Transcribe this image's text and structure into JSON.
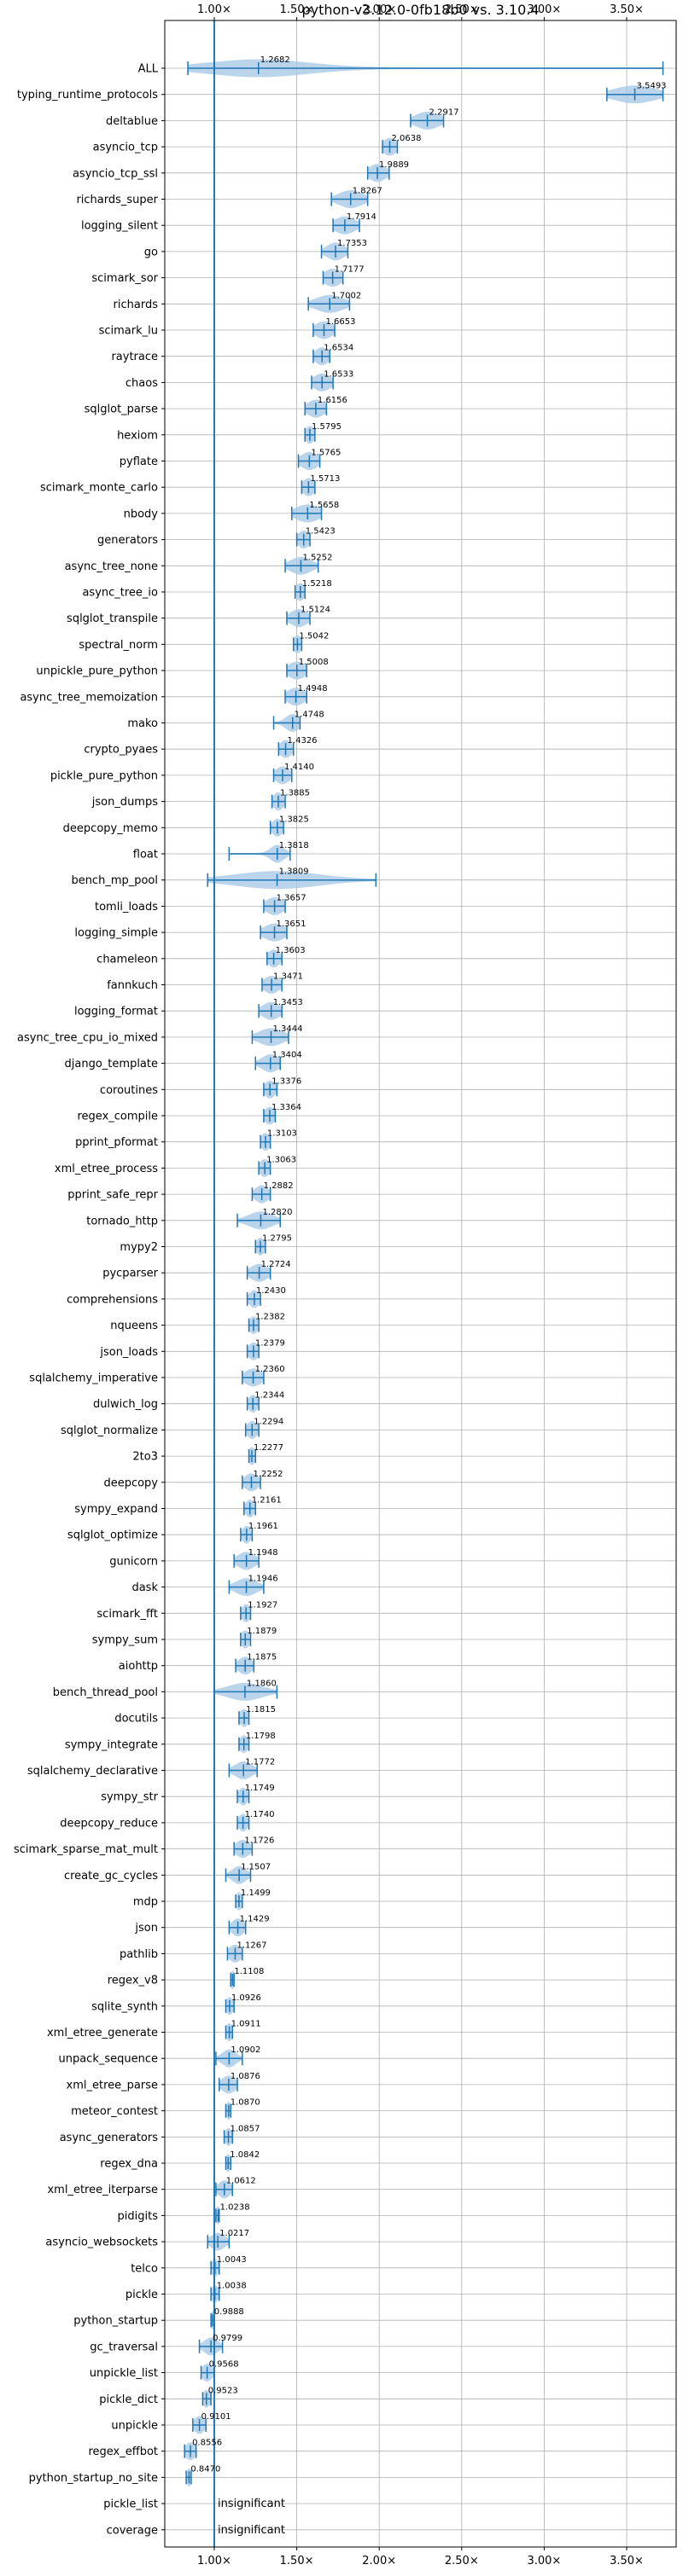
{
  "chart_data": {
    "type": "violin",
    "title": "python-v3.12.0-0fb18b0 vs. 3.10.4",
    "xlim": [
      0.7,
      3.8
    ],
    "x_ticks": [
      1.0,
      1.5,
      2.0,
      2.5,
      3.0,
      3.5
    ],
    "x_tick_labels": [
      "1.00×",
      "1.50×",
      "2.00×",
      "2.50×",
      "3.00×",
      "3.50×"
    ],
    "reference_line": 1.0,
    "grid": true,
    "color": "#1f77b4",
    "fill_color": "#a9c9e6",
    "benchmarks": [
      {
        "name": "ALL",
        "label": "1.2682",
        "median": 1.2682,
        "min": 0.84,
        "max": 3.72,
        "spread": 0.3
      },
      {
        "name": "typing_runtime_protocols",
        "label": "3.5493",
        "median": 3.5493,
        "min": 3.38,
        "max": 3.72,
        "spread": 0.12
      },
      {
        "name": "deltablue",
        "label": "2.2917",
        "median": 2.2917,
        "min": 2.19,
        "max": 2.39,
        "spread": 0.07
      },
      {
        "name": "asyncio_tcp",
        "label": "2.0638",
        "median": 2.0638,
        "min": 2.02,
        "max": 2.11,
        "spread": 0.04
      },
      {
        "name": "asyncio_tcp_ssl",
        "label": "1.9889",
        "median": 1.9889,
        "min": 1.93,
        "max": 2.06,
        "spread": 0.05
      },
      {
        "name": "richards_super",
        "label": "1.8267",
        "median": 1.8267,
        "min": 1.71,
        "max": 1.93,
        "spread": 0.07
      },
      {
        "name": "logging_silent",
        "label": "1.7914",
        "median": 1.7914,
        "min": 1.72,
        "max": 1.88,
        "spread": 0.06
      },
      {
        "name": "go",
        "label": "1.7353",
        "median": 1.7353,
        "min": 1.65,
        "max": 1.81,
        "spread": 0.05
      },
      {
        "name": "scimark_sor",
        "label": "1.7177",
        "median": 1.7177,
        "min": 1.66,
        "max": 1.78,
        "spread": 0.05
      },
      {
        "name": "richards",
        "label": "1.7002",
        "median": 1.7002,
        "min": 1.57,
        "max": 1.82,
        "spread": 0.08
      },
      {
        "name": "scimark_lu",
        "label": "1.6653",
        "median": 1.6653,
        "min": 1.6,
        "max": 1.73,
        "spread": 0.05
      },
      {
        "name": "raytrace",
        "label": "1.6534",
        "median": 1.6534,
        "min": 1.6,
        "max": 1.7,
        "spread": 0.04
      },
      {
        "name": "chaos",
        "label": "1.6533",
        "median": 1.6533,
        "min": 1.59,
        "max": 1.72,
        "spread": 0.05
      },
      {
        "name": "sqlglot_parse",
        "label": "1.6156",
        "median": 1.6156,
        "min": 1.55,
        "max": 1.68,
        "spread": 0.05
      },
      {
        "name": "hexiom",
        "label": "1.5795",
        "median": 1.5795,
        "min": 1.55,
        "max": 1.61,
        "spread": 0.025
      },
      {
        "name": "pyflate",
        "label": "1.5765",
        "median": 1.5765,
        "min": 1.51,
        "max": 1.64,
        "spread": 0.05
      },
      {
        "name": "scimark_monte_carlo",
        "label": "1.5713",
        "median": 1.5713,
        "min": 1.53,
        "max": 1.61,
        "spread": 0.035
      },
      {
        "name": "nbody",
        "label": "1.5658",
        "median": 1.5658,
        "min": 1.47,
        "max": 1.65,
        "spread": 0.07
      },
      {
        "name": "generators",
        "label": "1.5423",
        "median": 1.5423,
        "min": 1.5,
        "max": 1.58,
        "spread": 0.035
      },
      {
        "name": "async_tree_none",
        "label": "1.5252",
        "median": 1.5252,
        "min": 1.43,
        "max": 1.63,
        "spread": 0.06
      },
      {
        "name": "async_tree_io",
        "label": "1.5218",
        "median": 1.5218,
        "min": 1.49,
        "max": 1.55,
        "spread": 0.025
      },
      {
        "name": "sqlglot_transpile",
        "label": "1.5124",
        "median": 1.5124,
        "min": 1.44,
        "max": 1.58,
        "spread": 0.05
      },
      {
        "name": "spectral_norm",
        "label": "1.5042",
        "median": 1.5042,
        "min": 1.48,
        "max": 1.53,
        "spread": 0.025
      },
      {
        "name": "unpickle_pure_python",
        "label": "1.5008",
        "median": 1.5008,
        "min": 1.44,
        "max": 1.56,
        "spread": 0.05
      },
      {
        "name": "async_tree_memoization",
        "label": "1.4948",
        "median": 1.4948,
        "min": 1.43,
        "max": 1.56,
        "spread": 0.05
      },
      {
        "name": "mako",
        "label": "1.4748",
        "median": 1.4748,
        "min": 1.36,
        "max": 1.52,
        "spread": 0.04
      },
      {
        "name": "crypto_pyaes",
        "label": "1.4326",
        "median": 1.4326,
        "min": 1.39,
        "max": 1.48,
        "spread": 0.035
      },
      {
        "name": "pickle_pure_python",
        "label": "1.4140",
        "median": 1.414,
        "min": 1.36,
        "max": 1.47,
        "spread": 0.04
      },
      {
        "name": "json_dumps",
        "label": "1.3885",
        "median": 1.3885,
        "min": 1.35,
        "max": 1.43,
        "spread": 0.03
      },
      {
        "name": "deepcopy_memo",
        "label": "1.3825",
        "median": 1.3825,
        "min": 1.34,
        "max": 1.42,
        "spread": 0.03
      },
      {
        "name": "float",
        "label": "1.3818",
        "median": 1.3818,
        "min": 1.09,
        "max": 1.46,
        "spread": 0.04
      },
      {
        "name": "bench_mp_pool",
        "label": "1.3809",
        "median": 1.3809,
        "min": 0.96,
        "max": 1.98,
        "spread": 0.25
      },
      {
        "name": "tomli_loads",
        "label": "1.3657",
        "median": 1.3657,
        "min": 1.3,
        "max": 1.43,
        "spread": 0.05
      },
      {
        "name": "logging_simple",
        "label": "1.3651",
        "median": 1.3651,
        "min": 1.28,
        "max": 1.44,
        "spread": 0.06
      },
      {
        "name": "chameleon",
        "label": "1.3603",
        "median": 1.3603,
        "min": 1.32,
        "max": 1.41,
        "spread": 0.035
      },
      {
        "name": "fannkuch",
        "label": "1.3471",
        "median": 1.3471,
        "min": 1.29,
        "max": 1.41,
        "spread": 0.045
      },
      {
        "name": "logging_format",
        "label": "1.3453",
        "median": 1.3453,
        "min": 1.27,
        "max": 1.41,
        "spread": 0.05
      },
      {
        "name": "async_tree_cpu_io_mixed",
        "label": "1.3444",
        "median": 1.3444,
        "min": 1.23,
        "max": 1.45,
        "spread": 0.07
      },
      {
        "name": "django_template",
        "label": "1.3404",
        "median": 1.3404,
        "min": 1.25,
        "max": 1.4,
        "spread": 0.05
      },
      {
        "name": "coroutines",
        "label": "1.3376",
        "median": 1.3376,
        "min": 1.3,
        "max": 1.38,
        "spread": 0.03
      },
      {
        "name": "regex_compile",
        "label": "1.3364",
        "median": 1.3364,
        "min": 1.3,
        "max": 1.37,
        "spread": 0.03
      },
      {
        "name": "pprint_pformat",
        "label": "1.3103",
        "median": 1.3103,
        "min": 1.28,
        "max": 1.34,
        "spread": 0.025
      },
      {
        "name": "xml_etree_process",
        "label": "1.3063",
        "median": 1.3063,
        "min": 1.27,
        "max": 1.34,
        "spread": 0.03
      },
      {
        "name": "pprint_safe_repr",
        "label": "1.2882",
        "median": 1.2882,
        "min": 1.23,
        "max": 1.34,
        "spread": 0.04
      },
      {
        "name": "tornado_http",
        "label": "1.2820",
        "median": 1.282,
        "min": 1.14,
        "max": 1.4,
        "spread": 0.07
      },
      {
        "name": "mypy2",
        "label": "1.2795",
        "median": 1.2795,
        "min": 1.25,
        "max": 1.31,
        "spread": 0.025
      },
      {
        "name": "pycparser",
        "label": "1.2724",
        "median": 1.2724,
        "min": 1.2,
        "max": 1.34,
        "spread": 0.05
      },
      {
        "name": "comprehensions",
        "label": "1.2430",
        "median": 1.243,
        "min": 1.2,
        "max": 1.28,
        "spread": 0.03
      },
      {
        "name": "nqueens",
        "label": "1.2382",
        "median": 1.2382,
        "min": 1.21,
        "max": 1.27,
        "spread": 0.025
      },
      {
        "name": "json_loads",
        "label": "1.2379",
        "median": 1.2379,
        "min": 1.2,
        "max": 1.27,
        "spread": 0.03
      },
      {
        "name": "sqlalchemy_imperative",
        "label": "1.2360",
        "median": 1.236,
        "min": 1.17,
        "max": 1.3,
        "spread": 0.05
      },
      {
        "name": "dulwich_log",
        "label": "1.2344",
        "median": 1.2344,
        "min": 1.2,
        "max": 1.27,
        "spread": 0.025
      },
      {
        "name": "sqlglot_normalize",
        "label": "1.2294",
        "median": 1.2294,
        "min": 1.19,
        "max": 1.27,
        "spread": 0.03
      },
      {
        "name": "2to3",
        "label": "1.2277",
        "median": 1.2277,
        "min": 1.21,
        "max": 1.25,
        "spread": 0.02
      },
      {
        "name": "deepcopy",
        "label": "1.2252",
        "median": 1.2252,
        "min": 1.17,
        "max": 1.28,
        "spread": 0.04
      },
      {
        "name": "sympy_expand",
        "label": "1.2161",
        "median": 1.2161,
        "min": 1.18,
        "max": 1.25,
        "spread": 0.025
      },
      {
        "name": "sqlglot_optimize",
        "label": "1.1961",
        "median": 1.1961,
        "min": 1.16,
        "max": 1.23,
        "spread": 0.025
      },
      {
        "name": "gunicorn",
        "label": "1.1948",
        "median": 1.1948,
        "min": 1.12,
        "max": 1.27,
        "spread": 0.05
      },
      {
        "name": "dask",
        "label": "1.1946",
        "median": 1.1946,
        "min": 1.09,
        "max": 1.3,
        "spread": 0.06
      },
      {
        "name": "scimark_fft",
        "label": "1.1927",
        "median": 1.1927,
        "min": 1.16,
        "max": 1.22,
        "spread": 0.025
      },
      {
        "name": "sympy_sum",
        "label": "1.1879",
        "median": 1.1879,
        "min": 1.16,
        "max": 1.22,
        "spread": 0.025
      },
      {
        "name": "aiohttp",
        "label": "1.1875",
        "median": 1.1875,
        "min": 1.13,
        "max": 1.24,
        "spread": 0.04
      },
      {
        "name": "bench_thread_pool",
        "label": "1.1860",
        "median": 1.186,
        "min": 1.0,
        "max": 1.38,
        "spread": 0.1
      },
      {
        "name": "docutils",
        "label": "1.1815",
        "median": 1.1815,
        "min": 1.15,
        "max": 1.21,
        "spread": 0.025
      },
      {
        "name": "sympy_integrate",
        "label": "1.1798",
        "median": 1.1798,
        "min": 1.15,
        "max": 1.21,
        "spread": 0.025
      },
      {
        "name": "sqlalchemy_declarative",
        "label": "1.1772",
        "median": 1.1772,
        "min": 1.09,
        "max": 1.26,
        "spread": 0.05
      },
      {
        "name": "sympy_str",
        "label": "1.1749",
        "median": 1.1749,
        "min": 1.14,
        "max": 1.21,
        "spread": 0.025
      },
      {
        "name": "deepcopy_reduce",
        "label": "1.1740",
        "median": 1.174,
        "min": 1.14,
        "max": 1.21,
        "spread": 0.025
      },
      {
        "name": "scimark_sparse_mat_mult",
        "label": "1.1726",
        "median": 1.1726,
        "min": 1.12,
        "max": 1.23,
        "spread": 0.04
      },
      {
        "name": "create_gc_cycles",
        "label": "1.1507",
        "median": 1.1507,
        "min": 1.07,
        "max": 1.22,
        "spread": 0.04
      },
      {
        "name": "mdp",
        "label": "1.1499",
        "median": 1.1499,
        "min": 1.13,
        "max": 1.17,
        "spread": 0.02
      },
      {
        "name": "json",
        "label": "1.1429",
        "median": 1.1429,
        "min": 1.09,
        "max": 1.19,
        "spread": 0.035
      },
      {
        "name": "pathlib",
        "label": "1.1267",
        "median": 1.1267,
        "min": 1.08,
        "max": 1.17,
        "spread": 0.035
      },
      {
        "name": "regex_v8",
        "label": "1.1108",
        "median": 1.1108,
        "min": 1.1,
        "max": 1.12,
        "spread": 0.015
      },
      {
        "name": "sqlite_synth",
        "label": "1.0926",
        "median": 1.0926,
        "min": 1.07,
        "max": 1.12,
        "spread": 0.02
      },
      {
        "name": "xml_etree_generate",
        "label": "1.0911",
        "median": 1.0911,
        "min": 1.07,
        "max": 1.11,
        "spread": 0.02
      },
      {
        "name": "unpack_sequence",
        "label": "1.0902",
        "median": 1.0902,
        "min": 1.01,
        "max": 1.17,
        "spread": 0.04
      },
      {
        "name": "xml_etree_parse",
        "label": "1.0876",
        "median": 1.0876,
        "min": 1.03,
        "max": 1.14,
        "spread": 0.04
      },
      {
        "name": "meteor_contest",
        "label": "1.0870",
        "median": 1.087,
        "min": 1.07,
        "max": 1.1,
        "spread": 0.015
      },
      {
        "name": "async_generators",
        "label": "1.0857",
        "median": 1.0857,
        "min": 1.06,
        "max": 1.11,
        "spread": 0.02
      },
      {
        "name": "regex_dna",
        "label": "1.0842",
        "median": 1.0842,
        "min": 1.07,
        "max": 1.1,
        "spread": 0.015
      },
      {
        "name": "xml_etree_iterparse",
        "label": "1.0612",
        "median": 1.0612,
        "min": 1.01,
        "max": 1.11,
        "spread": 0.035
      },
      {
        "name": "pidigits",
        "label": "1.0238",
        "median": 1.0238,
        "min": 1.01,
        "max": 1.03,
        "spread": 0.015
      },
      {
        "name": "asyncio_websockets",
        "label": "1.0217",
        "median": 1.0217,
        "min": 0.96,
        "max": 1.09,
        "spread": 0.04
      },
      {
        "name": "telco",
        "label": "1.0043",
        "median": 1.0043,
        "min": 0.98,
        "max": 1.03,
        "spread": 0.02
      },
      {
        "name": "pickle",
        "label": "1.0038",
        "median": 1.0038,
        "min": 0.98,
        "max": 1.03,
        "spread": 0.02
      },
      {
        "name": "python_startup",
        "label": "0.9888",
        "median": 0.9888,
        "min": 0.98,
        "max": 1.0,
        "spread": 0.015
      },
      {
        "name": "gc_traversal",
        "label": "0.9799",
        "median": 0.9799,
        "min": 0.91,
        "max": 1.05,
        "spread": 0.04
      },
      {
        "name": "unpickle_list",
        "label": "0.9568",
        "median": 0.9568,
        "min": 0.92,
        "max": 1.0,
        "spread": 0.03
      },
      {
        "name": "pickle_dict",
        "label": "0.9523",
        "median": 0.9523,
        "min": 0.93,
        "max": 0.98,
        "spread": 0.02
      },
      {
        "name": "unpickle",
        "label": "0.9101",
        "median": 0.9101,
        "min": 0.87,
        "max": 0.95,
        "spread": 0.03
      },
      {
        "name": "regex_effbot",
        "label": "0.8556",
        "median": 0.8556,
        "min": 0.82,
        "max": 0.89,
        "spread": 0.03
      },
      {
        "name": "python_startup_no_site",
        "label": "0.8470",
        "median": 0.847,
        "min": 0.83,
        "max": 0.86,
        "spread": 0.015
      },
      {
        "name": "pickle_list",
        "label": "insignificant",
        "median": null,
        "min": null,
        "max": null,
        "spread": 0
      },
      {
        "name": "coverage",
        "label": "insignificant",
        "median": null,
        "min": null,
        "max": null,
        "spread": 0
      }
    ]
  }
}
